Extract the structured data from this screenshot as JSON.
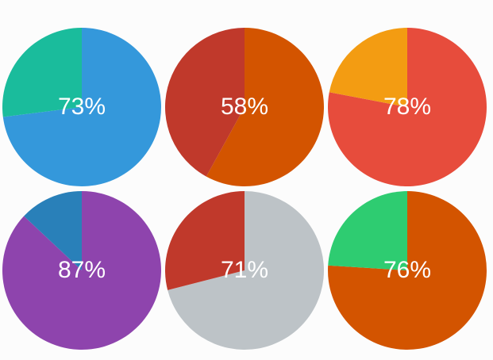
{
  "chart_data": [
    {
      "type": "pie",
      "label": "73%",
      "values": [
        73,
        27
      ],
      "colors": [
        "#3498db",
        "#1abc9c"
      ]
    },
    {
      "type": "pie",
      "label": "58%",
      "values": [
        58,
        42
      ],
      "colors": [
        "#d35400",
        "#c0392b"
      ]
    },
    {
      "type": "pie",
      "label": "78%",
      "values": [
        78,
        22
      ],
      "colors": [
        "#e74c3c",
        "#f39c12"
      ]
    },
    {
      "type": "pie",
      "label": "87%",
      "values": [
        87,
        13
      ],
      "colors": [
        "#8e44ad",
        "#2980b9"
      ]
    },
    {
      "type": "pie",
      "label": "71%",
      "values": [
        71,
        29
      ],
      "colors": [
        "#bdc3c7",
        "#c0392b"
      ]
    },
    {
      "type": "pie",
      "label": "76%",
      "values": [
        76,
        24
      ],
      "colors": [
        "#d35400",
        "#2ecc71"
      ]
    }
  ]
}
